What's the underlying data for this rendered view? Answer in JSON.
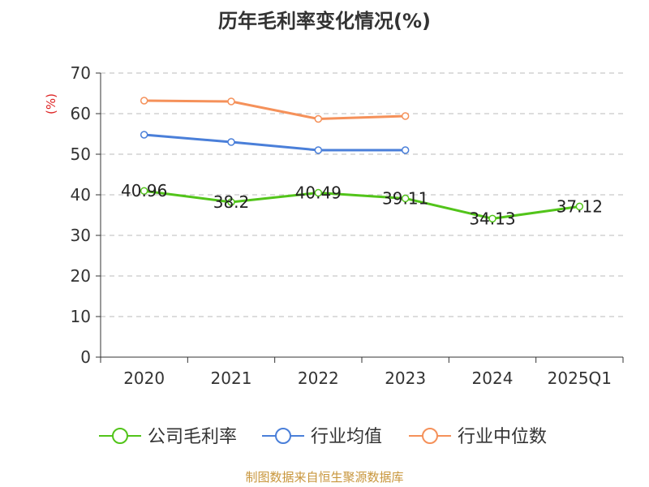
{
  "chart_data": {
    "type": "line",
    "title": "历年毛利率变化情况(%)",
    "ylabel": "(%)",
    "xlabel": "",
    "categories": [
      "2020",
      "2021",
      "2022",
      "2023",
      "2024",
      "2025Q1"
    ],
    "ylim": [
      0,
      70
    ],
    "yticks": [
      0,
      10,
      20,
      30,
      40,
      50,
      60,
      70
    ],
    "grid": "horizontal-dashed",
    "legend_position": "bottom",
    "series": [
      {
        "name": "公司毛利率",
        "color": "#52c41a",
        "values": [
          40.96,
          38.2,
          40.49,
          39.11,
          34.13,
          37.12
        ],
        "labels": [
          "40.96",
          "38.2",
          "40.49",
          "39.11",
          "34.13",
          "37.12"
        ]
      },
      {
        "name": "行业均值",
        "color": "#4a7fd9",
        "values": [
          54.8,
          53.0,
          51.0,
          51.0,
          null,
          null
        ]
      },
      {
        "name": "行业中位数",
        "color": "#f5915a",
        "values": [
          63.2,
          63.0,
          58.7,
          59.4,
          null,
          null
        ]
      }
    ],
    "source": "制图数据来自恒生聚源数据库"
  },
  "colors": {
    "axis": "#333333",
    "grid": "#bbbbbb",
    "source": "#c8963c",
    "ylabel": "#dd2222"
  }
}
